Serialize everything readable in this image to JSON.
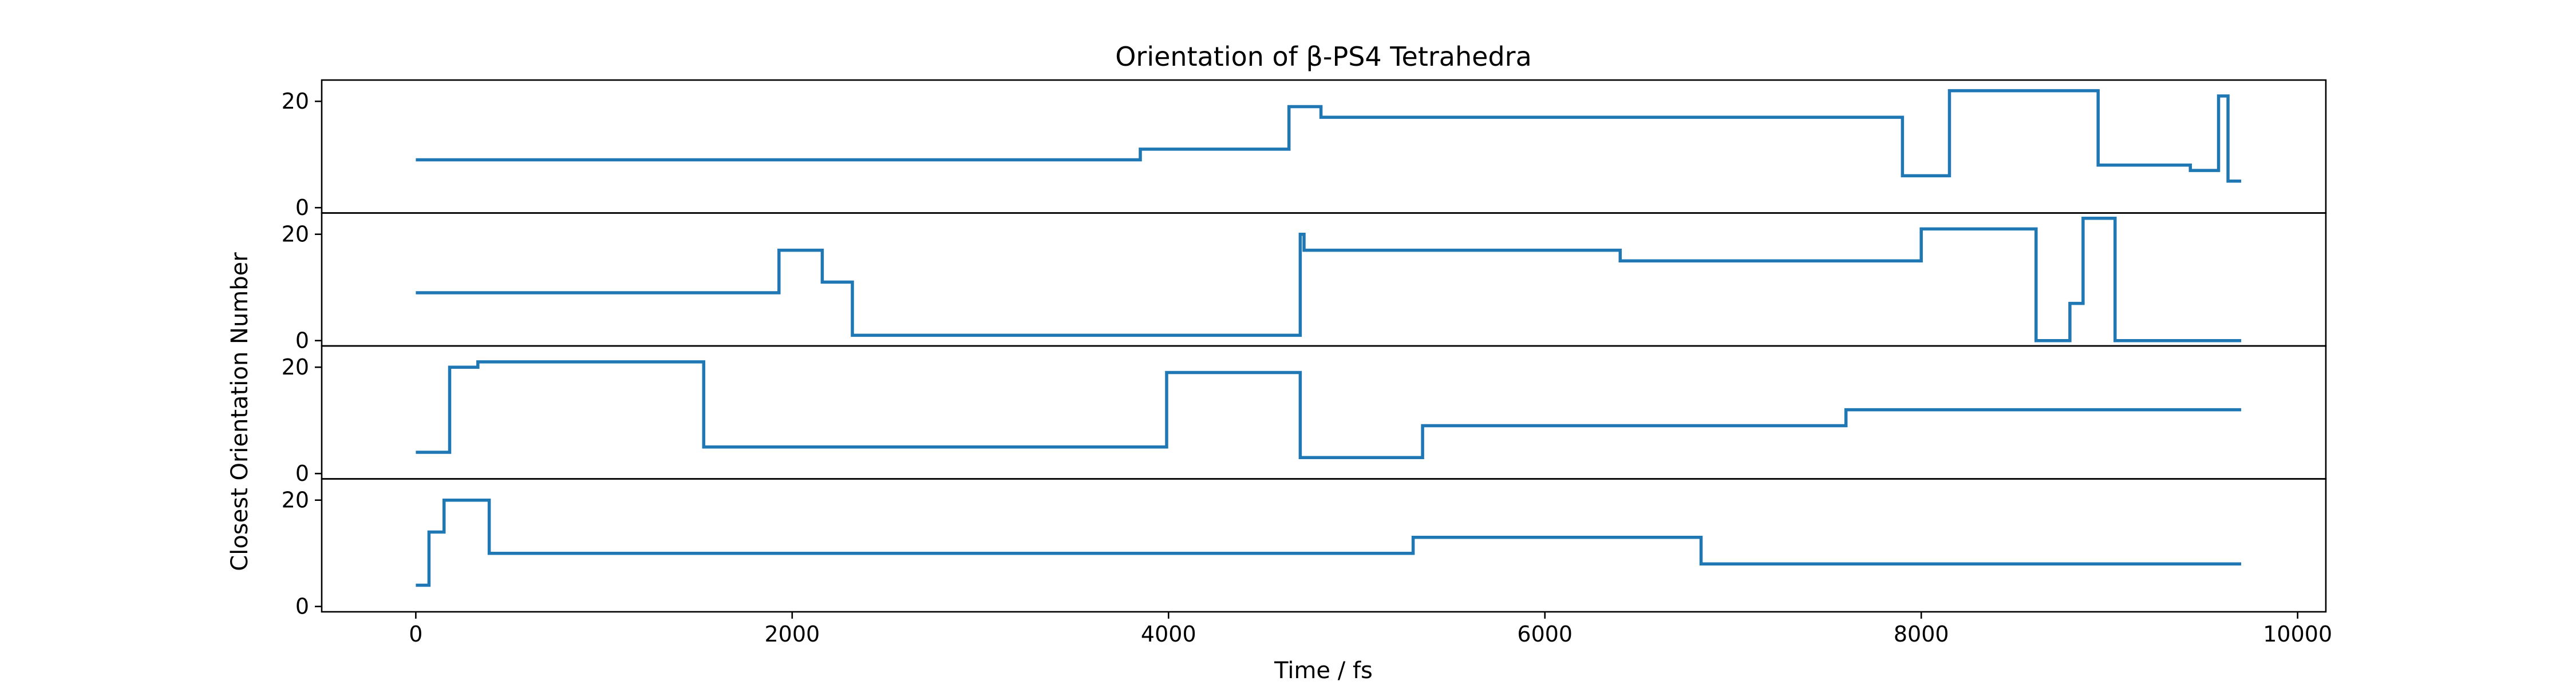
{
  "chart_data": {
    "type": "line",
    "title": "Orientation of β-PS4 Tetrahedra",
    "xlabel": "Time / fs",
    "ylabel": "Closest Orientation Number",
    "xlim": [
      -500,
      10150
    ],
    "ylim": [
      -1,
      24
    ],
    "xticks": [
      0,
      2000,
      4000,
      6000,
      8000,
      10000
    ],
    "yticks": [
      0,
      20
    ],
    "line_color": "#1f77b4",
    "grid": false,
    "legend": "none",
    "subplots": [
      {
        "step_points": [
          [
            0,
            9
          ],
          [
            3850,
            9
          ],
          [
            3850,
            11
          ],
          [
            4640,
            11
          ],
          [
            4640,
            19
          ],
          [
            4810,
            19
          ],
          [
            4810,
            17
          ],
          [
            7900,
            17
          ],
          [
            7900,
            6
          ],
          [
            8150,
            6
          ],
          [
            8150,
            22
          ],
          [
            8940,
            22
          ],
          [
            8940,
            8
          ],
          [
            9430,
            8
          ],
          [
            9430,
            7
          ],
          [
            9580,
            7
          ],
          [
            9580,
            21
          ],
          [
            9630,
            21
          ],
          [
            9630,
            5
          ],
          [
            9700,
            5
          ]
        ]
      },
      {
        "step_points": [
          [
            0,
            9
          ],
          [
            1930,
            9
          ],
          [
            1930,
            17
          ],
          [
            2160,
            17
          ],
          [
            2160,
            11
          ],
          [
            2320,
            11
          ],
          [
            2320,
            1
          ],
          [
            4700,
            1
          ],
          [
            4700,
            20
          ],
          [
            4720,
            20
          ],
          [
            4720,
            17
          ],
          [
            6400,
            17
          ],
          [
            6400,
            15
          ],
          [
            8000,
            15
          ],
          [
            8000,
            21
          ],
          [
            8610,
            21
          ],
          [
            8610,
            0
          ],
          [
            8790,
            0
          ],
          [
            8790,
            7
          ],
          [
            8860,
            7
          ],
          [
            8860,
            23
          ],
          [
            9030,
            23
          ],
          [
            9030,
            0
          ],
          [
            9700,
            0
          ]
        ]
      },
      {
        "step_points": [
          [
            0,
            4
          ],
          [
            180,
            4
          ],
          [
            180,
            20
          ],
          [
            330,
            20
          ],
          [
            330,
            21
          ],
          [
            1530,
            21
          ],
          [
            1530,
            5
          ],
          [
            3990,
            5
          ],
          [
            3990,
            19
          ],
          [
            4700,
            19
          ],
          [
            4700,
            3
          ],
          [
            5350,
            3
          ],
          [
            5350,
            9
          ],
          [
            7600,
            9
          ],
          [
            7600,
            12
          ],
          [
            9700,
            12
          ]
        ]
      },
      {
        "step_points": [
          [
            0,
            4
          ],
          [
            70,
            4
          ],
          [
            70,
            14
          ],
          [
            150,
            14
          ],
          [
            150,
            20
          ],
          [
            390,
            20
          ],
          [
            390,
            10
          ],
          [
            5300,
            10
          ],
          [
            5300,
            13
          ],
          [
            6830,
            13
          ],
          [
            6830,
            8
          ],
          [
            9700,
            8
          ]
        ]
      }
    ]
  }
}
